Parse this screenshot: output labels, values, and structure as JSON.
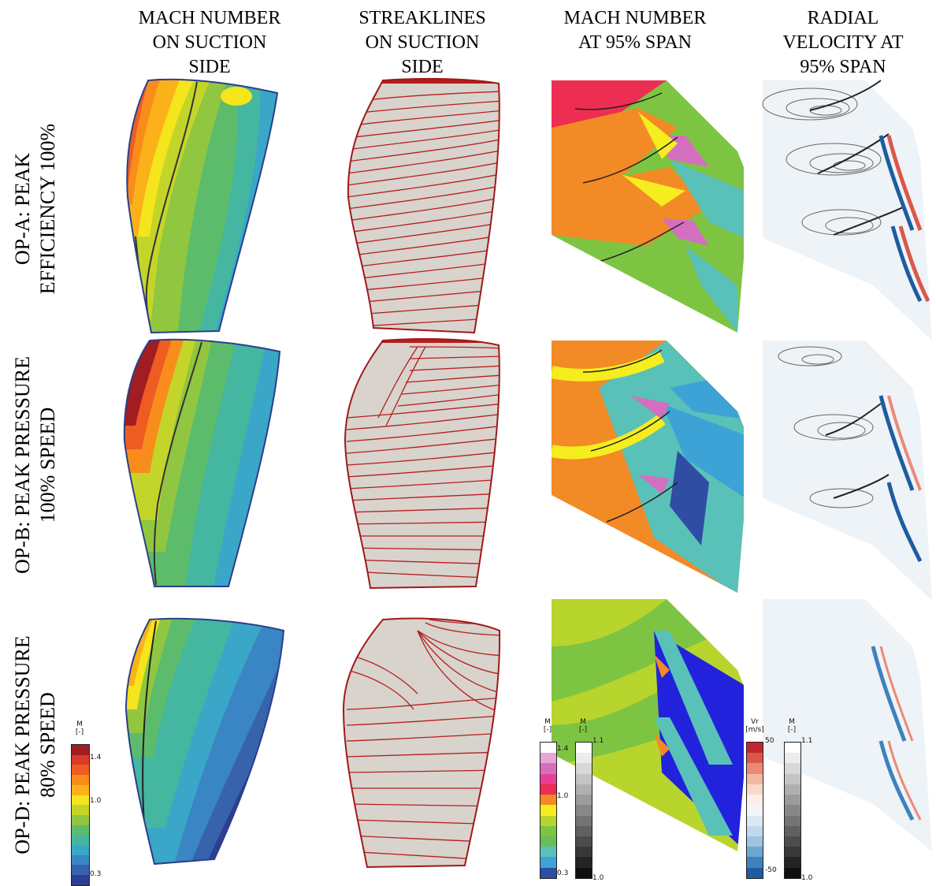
{
  "column_headers": [
    [
      "MACH NUMBER",
      "ON SUCTION",
      "SIDE"
    ],
    [
      "STREAKLINES",
      "ON SUCTION",
      "SIDE"
    ],
    [
      "MACH NUMBER",
      "AT 95% SPAN"
    ],
    [
      "RADIAL",
      "VELOCITY AT",
      "95% SPAN"
    ]
  ],
  "row_labels": [
    [
      "OP-A: PEAK",
      "EFFICIENCY 100%"
    ],
    [
      "OP-B: PEAK PRESSURE",
      "100% SPEED"
    ],
    [
      "OP-D: PEAK PRESSURE",
      "80% SPEED"
    ]
  ],
  "legends": {
    "mach_surface": {
      "title": "M",
      "unit": "[-]",
      "ticks": [
        "1.4",
        "1.0",
        "0.3"
      ],
      "colors": [
        "#a21d21",
        "#d83a2b",
        "#ef5c22",
        "#f88d1c",
        "#fbb11a",
        "#f4e51d",
        "#c4d52a",
        "#90c640",
        "#5dbc6b",
        "#45b6a0",
        "#3aa6c8",
        "#3a85c4",
        "#3763ad",
        "#2c3f93"
      ]
    },
    "mach_span": {
      "title": "M",
      "unit": "[-]",
      "ticks": [
        "1.4",
        "1.0",
        "0.3"
      ],
      "colors": [
        "#ffffff",
        "#e6a6d6",
        "#d46fc0",
        "#ea3e96",
        "#ee2d52",
        "#f28a26",
        "#f5ed1e",
        "#b8d52d",
        "#7dc443",
        "#69bd5a",
        "#59c1b8",
        "#3da3d6",
        "#2f4da3"
      ]
    },
    "gray_1": {
      "title": "M",
      "unit": "[-]",
      "ticks": [
        "1.1",
        "1.0"
      ],
      "colors": [
        "#ffffff",
        "#ececec",
        "#d8d8d8",
        "#c4c4c4",
        "#b0b0b0",
        "#9c9c9c",
        "#888888",
        "#747474",
        "#606060",
        "#4c4c4c",
        "#383838",
        "#242424",
        "#101010"
      ]
    },
    "radial": {
      "title": "Vr",
      "unit": "[m/s]",
      "ticks": [
        "50",
        "-50"
      ],
      "colors": [
        "#c0262c",
        "#db574b",
        "#ea8a76",
        "#f4b7a4",
        "#fad8cc",
        "#fdeee9",
        "#f3f6f9",
        "#dce9f3",
        "#c1d9ec",
        "#9ec4e2",
        "#6da6d1",
        "#3e82bd",
        "#1f5c9f"
      ]
    },
    "gray_2": {
      "title": "M",
      "unit": "[-]",
      "ticks": [
        "1.1",
        "1.0"
      ],
      "colors": [
        "#ffffff",
        "#ececec",
        "#d8d8d8",
        "#c4c4c4",
        "#b0b0b0",
        "#9c9c9c",
        "#888888",
        "#747474",
        "#606060",
        "#4c4c4c",
        "#383838",
        "#242424",
        "#101010"
      ]
    }
  }
}
